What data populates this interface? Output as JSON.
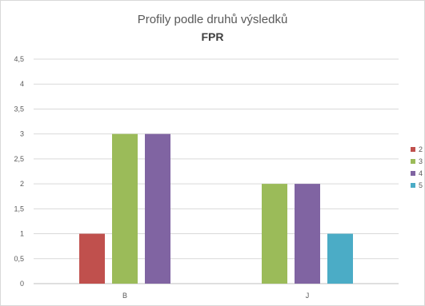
{
  "chart_data": {
    "type": "bar",
    "title": "Profily podle druhů výsledků",
    "subtitle": "FPR",
    "categories": [
      "B",
      "J"
    ],
    "series": [
      {
        "name": "2",
        "color": "#c0504d",
        "values": [
          1,
          0
        ]
      },
      {
        "name": "3",
        "color": "#9bbb59",
        "values": [
          3,
          2
        ]
      },
      {
        "name": "4",
        "color": "#8064a2",
        "values": [
          3,
          2
        ]
      },
      {
        "name": "5",
        "color": "#4bacc6",
        "values": [
          0,
          1
        ]
      }
    ],
    "ylim": [
      0,
      4.5
    ],
    "y_ticks": [
      "0",
      "0,5",
      "1",
      "1,5",
      "2",
      "2,5",
      "3",
      "3,5",
      "4",
      "4,5"
    ],
    "grid": true,
    "legend_position": "right"
  }
}
